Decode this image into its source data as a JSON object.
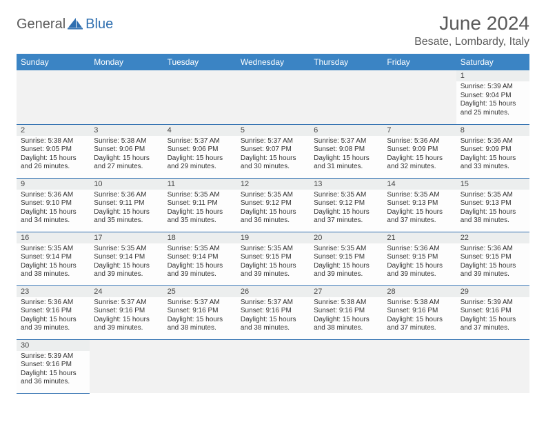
{
  "brand": {
    "part1": "General",
    "part2": "Blue"
  },
  "title": "June 2024",
  "location": "Besate, Lombardy, Italy",
  "colors": {
    "header_bg": "#3b84c4",
    "border": "#2f6fb0",
    "daynum_bg": "#eceeee",
    "logo_gray": "#5a5a5a",
    "logo_blue": "#2f6fb0"
  },
  "weekdays": [
    "Sunday",
    "Monday",
    "Tuesday",
    "Wednesday",
    "Thursday",
    "Friday",
    "Saturday"
  ],
  "layout": {
    "first_weekday_index": 6,
    "days_in_month": 30
  },
  "days": {
    "1": {
      "sunrise": "5:39 AM",
      "sunset": "9:04 PM",
      "daylight": "15 hours and 25 minutes."
    },
    "2": {
      "sunrise": "5:38 AM",
      "sunset": "9:05 PM",
      "daylight": "15 hours and 26 minutes."
    },
    "3": {
      "sunrise": "5:38 AM",
      "sunset": "9:06 PM",
      "daylight": "15 hours and 27 minutes."
    },
    "4": {
      "sunrise": "5:37 AM",
      "sunset": "9:06 PM",
      "daylight": "15 hours and 29 minutes."
    },
    "5": {
      "sunrise": "5:37 AM",
      "sunset": "9:07 PM",
      "daylight": "15 hours and 30 minutes."
    },
    "6": {
      "sunrise": "5:37 AM",
      "sunset": "9:08 PM",
      "daylight": "15 hours and 31 minutes."
    },
    "7": {
      "sunrise": "5:36 AM",
      "sunset": "9:09 PM",
      "daylight": "15 hours and 32 minutes."
    },
    "8": {
      "sunrise": "5:36 AM",
      "sunset": "9:09 PM",
      "daylight": "15 hours and 33 minutes."
    },
    "9": {
      "sunrise": "5:36 AM",
      "sunset": "9:10 PM",
      "daylight": "15 hours and 34 minutes."
    },
    "10": {
      "sunrise": "5:36 AM",
      "sunset": "9:11 PM",
      "daylight": "15 hours and 35 minutes."
    },
    "11": {
      "sunrise": "5:35 AM",
      "sunset": "9:11 PM",
      "daylight": "15 hours and 35 minutes."
    },
    "12": {
      "sunrise": "5:35 AM",
      "sunset": "9:12 PM",
      "daylight": "15 hours and 36 minutes."
    },
    "13": {
      "sunrise": "5:35 AM",
      "sunset": "9:12 PM",
      "daylight": "15 hours and 37 minutes."
    },
    "14": {
      "sunrise": "5:35 AM",
      "sunset": "9:13 PM",
      "daylight": "15 hours and 37 minutes."
    },
    "15": {
      "sunrise": "5:35 AM",
      "sunset": "9:13 PM",
      "daylight": "15 hours and 38 minutes."
    },
    "16": {
      "sunrise": "5:35 AM",
      "sunset": "9:14 PM",
      "daylight": "15 hours and 38 minutes."
    },
    "17": {
      "sunrise": "5:35 AM",
      "sunset": "9:14 PM",
      "daylight": "15 hours and 39 minutes."
    },
    "18": {
      "sunrise": "5:35 AM",
      "sunset": "9:14 PM",
      "daylight": "15 hours and 39 minutes."
    },
    "19": {
      "sunrise": "5:35 AM",
      "sunset": "9:15 PM",
      "daylight": "15 hours and 39 minutes."
    },
    "20": {
      "sunrise": "5:35 AM",
      "sunset": "9:15 PM",
      "daylight": "15 hours and 39 minutes."
    },
    "21": {
      "sunrise": "5:36 AM",
      "sunset": "9:15 PM",
      "daylight": "15 hours and 39 minutes."
    },
    "22": {
      "sunrise": "5:36 AM",
      "sunset": "9:15 PM",
      "daylight": "15 hours and 39 minutes."
    },
    "23": {
      "sunrise": "5:36 AM",
      "sunset": "9:16 PM",
      "daylight": "15 hours and 39 minutes."
    },
    "24": {
      "sunrise": "5:37 AM",
      "sunset": "9:16 PM",
      "daylight": "15 hours and 39 minutes."
    },
    "25": {
      "sunrise": "5:37 AM",
      "sunset": "9:16 PM",
      "daylight": "15 hours and 38 minutes."
    },
    "26": {
      "sunrise": "5:37 AM",
      "sunset": "9:16 PM",
      "daylight": "15 hours and 38 minutes."
    },
    "27": {
      "sunrise": "5:38 AM",
      "sunset": "9:16 PM",
      "daylight": "15 hours and 38 minutes."
    },
    "28": {
      "sunrise": "5:38 AM",
      "sunset": "9:16 PM",
      "daylight": "15 hours and 37 minutes."
    },
    "29": {
      "sunrise": "5:39 AM",
      "sunset": "9:16 PM",
      "daylight": "15 hours and 37 minutes."
    },
    "30": {
      "sunrise": "5:39 AM",
      "sunset": "9:16 PM",
      "daylight": "15 hours and 36 minutes."
    }
  },
  "labels": {
    "sunrise": "Sunrise:",
    "sunset": "Sunset:",
    "daylight": "Daylight:"
  }
}
